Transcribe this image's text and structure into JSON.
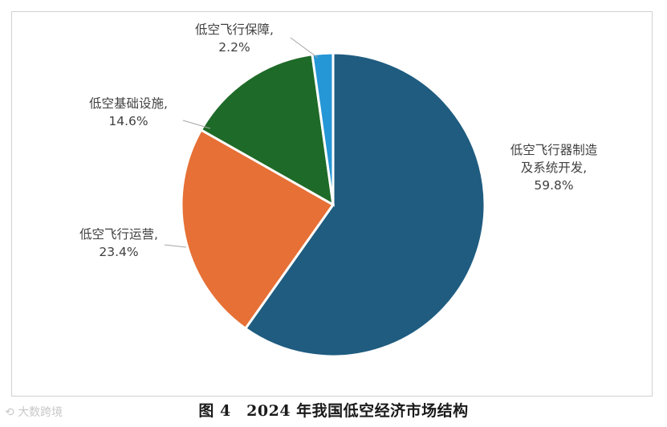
{
  "caption": "图 4　2024 年我国低空经济市场结构",
  "watermark": "大数跨境",
  "chart_data": {
    "type": "pie",
    "slices": [
      {
        "name": "低空飞行器制造及系统开发",
        "label_lines": [
          "低空飞行器制造",
          "及系统开发,",
          "59.8%"
        ],
        "value": 59.8,
        "color": "#1f5c80"
      },
      {
        "name": "低空飞行运营",
        "label_lines": [
          "低空飞行运营,",
          "23.4%"
        ],
        "value": 23.4,
        "color": "#e67035"
      },
      {
        "name": "低空基础设施",
        "label_lines": [
          "低空基础设施,",
          "14.6%"
        ],
        "value": 14.6,
        "color": "#1e6a28"
      },
      {
        "name": "低空飞行保障",
        "label_lines": [
          "低空飞行保障,",
          "2.2%"
        ],
        "value": 2.2,
        "color": "#2596d6"
      }
    ],
    "legend": "none",
    "data_labels": "outside"
  }
}
